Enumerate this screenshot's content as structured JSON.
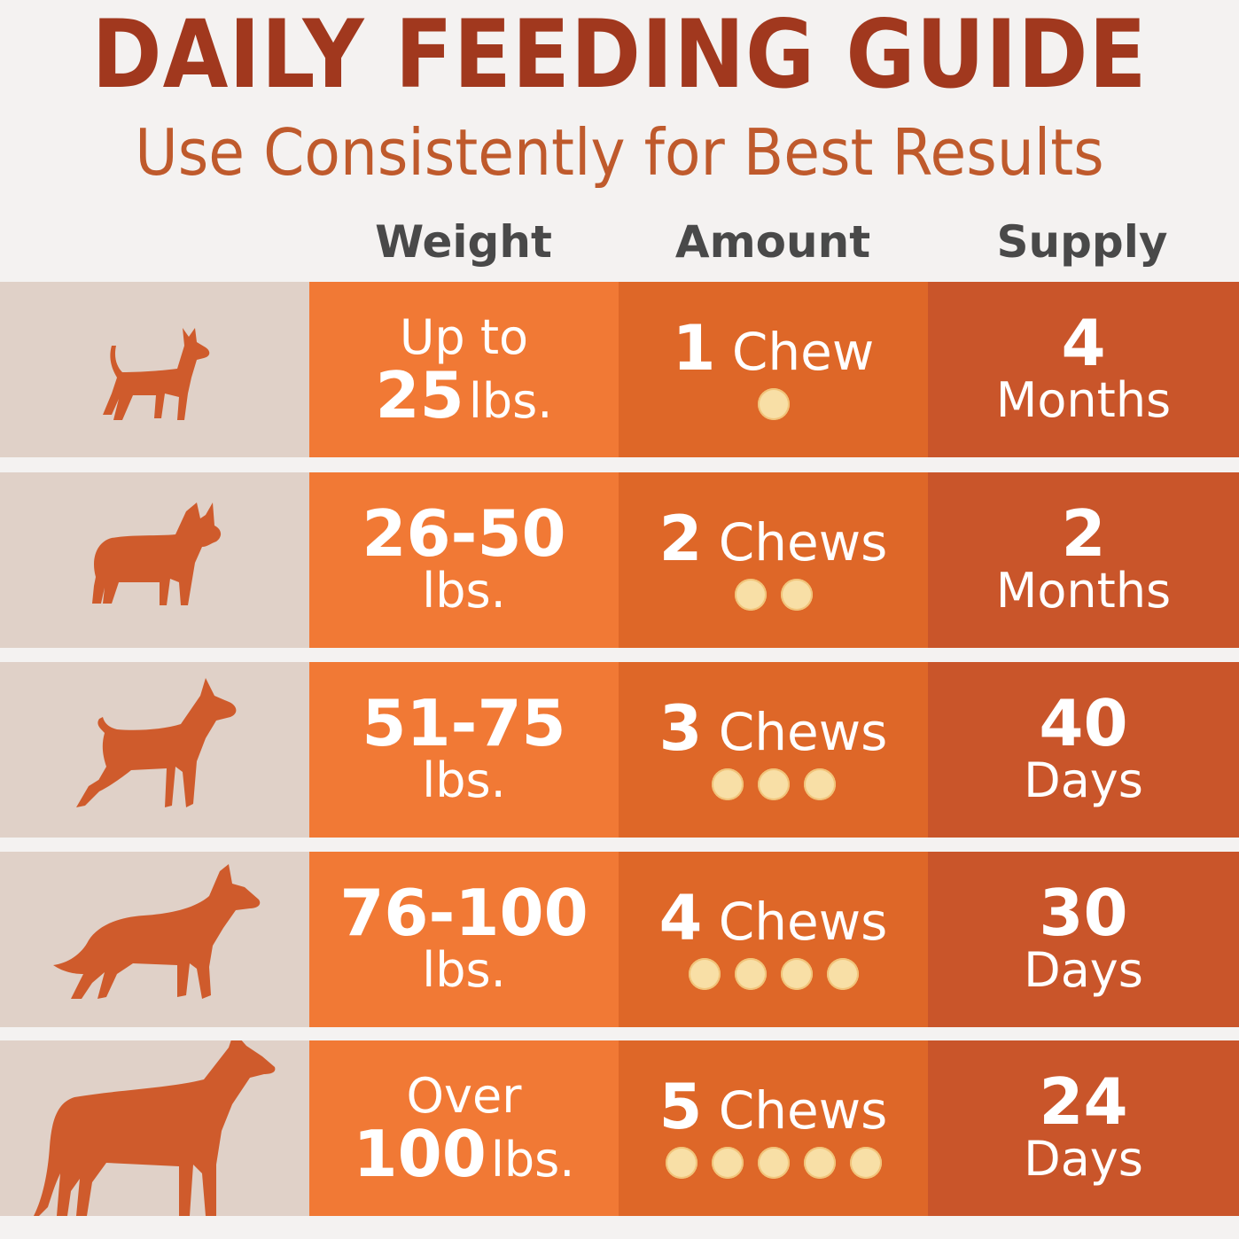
{
  "title": "DAILY FEEDING GUIDE",
  "subtitle": "Use Consistently for Best Results",
  "headers": {
    "weight": "Weight",
    "amount": "Amount",
    "supply": "Supply"
  },
  "colors": {
    "title": "#a1381e",
    "subtitle": "#bf5a2c",
    "header": "#494949",
    "icon_bg": "#e0d1c8",
    "weight_bg": "#f17935",
    "amount_bg": "#de6728",
    "supply_bg": "#c9552a",
    "dog": "#cf5b2c",
    "chew": "#f8dfa6"
  },
  "rows": [
    {
      "icon": "chihuahua-silhouette-icon",
      "weight": {
        "line1": "Up to",
        "line2_num": "25",
        "line2_unit": "lbs."
      },
      "amount": {
        "num": "1",
        "unit": "Chew",
        "count": 1
      },
      "supply": {
        "num": "4",
        "unit": "Months"
      }
    },
    {
      "icon": "french-bulldog-silhouette-icon",
      "weight": {
        "line1": "26-50",
        "line2": "lbs."
      },
      "amount": {
        "num": "2",
        "unit": "Chews",
        "count": 2
      },
      "supply": {
        "num": "2",
        "unit": "Months"
      }
    },
    {
      "icon": "pit-bull-silhouette-icon",
      "weight": {
        "line1": "51-75",
        "line2": "lbs."
      },
      "amount": {
        "num": "3",
        "unit": "Chews",
        "count": 3
      },
      "supply": {
        "num": "40",
        "unit": "Days"
      }
    },
    {
      "icon": "shepherd-silhouette-icon",
      "weight": {
        "line1": "76-100",
        "line2": "lbs."
      },
      "amount": {
        "num": "4",
        "unit": "Chews",
        "count": 4
      },
      "supply": {
        "num": "30",
        "unit": "Days"
      }
    },
    {
      "icon": "great-dane-silhouette-icon",
      "weight": {
        "line1": "Over",
        "line2_num": "100",
        "line2_unit": "lbs."
      },
      "amount": {
        "num": "5",
        "unit": "Chews",
        "count": 5
      },
      "supply": {
        "num": "24",
        "unit": "Days"
      }
    }
  ]
}
